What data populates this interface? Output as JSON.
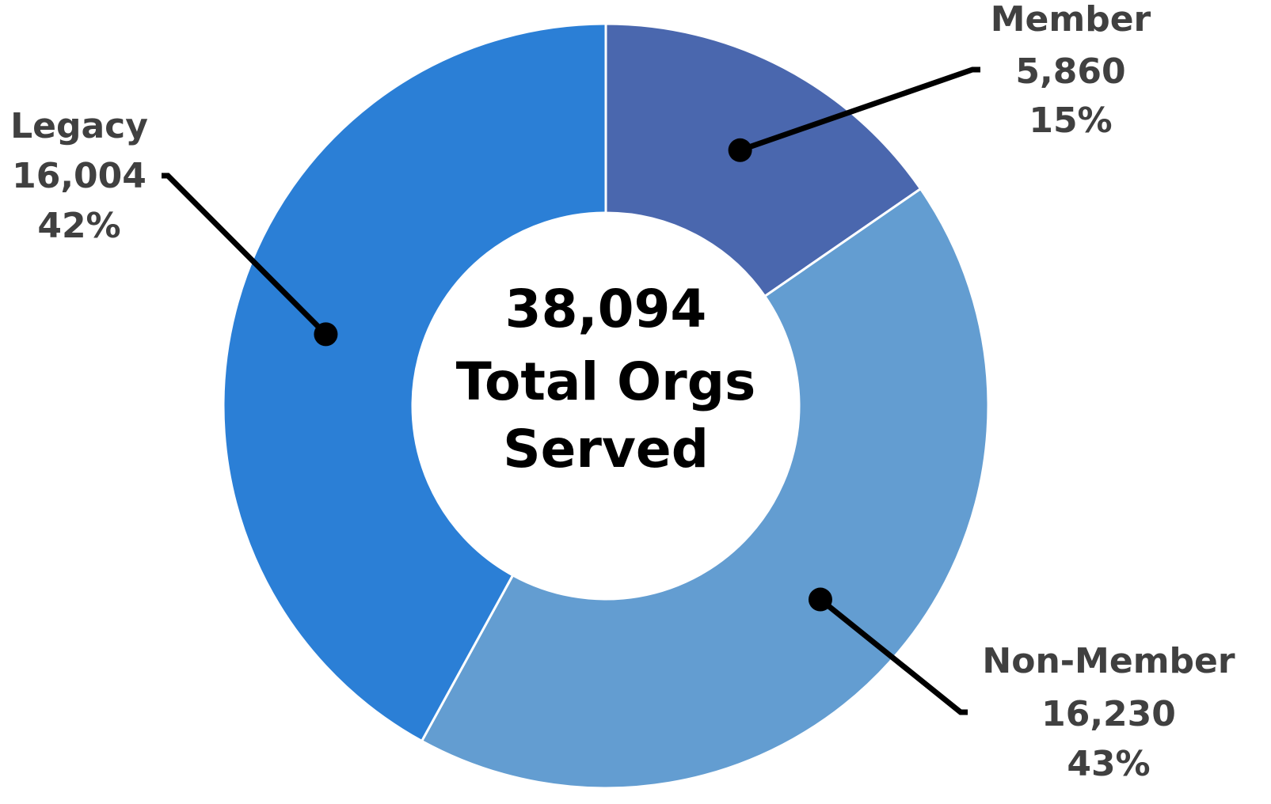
{
  "chart_data": {
    "type": "donut",
    "categories": [
      "Member",
      "Non-Member",
      "Legacy"
    ],
    "values": [
      5860,
      16230,
      16004
    ],
    "value_labels": [
      "5,860",
      "16,230",
      "16,004"
    ],
    "percent_labels": [
      "15%",
      "43%",
      "42%"
    ],
    "colors": [
      "#4a67ae",
      "#639dd1",
      "#2b7fd6"
    ],
    "center_text": [
      "38,094",
      "Total Orgs",
      "Served"
    ]
  }
}
